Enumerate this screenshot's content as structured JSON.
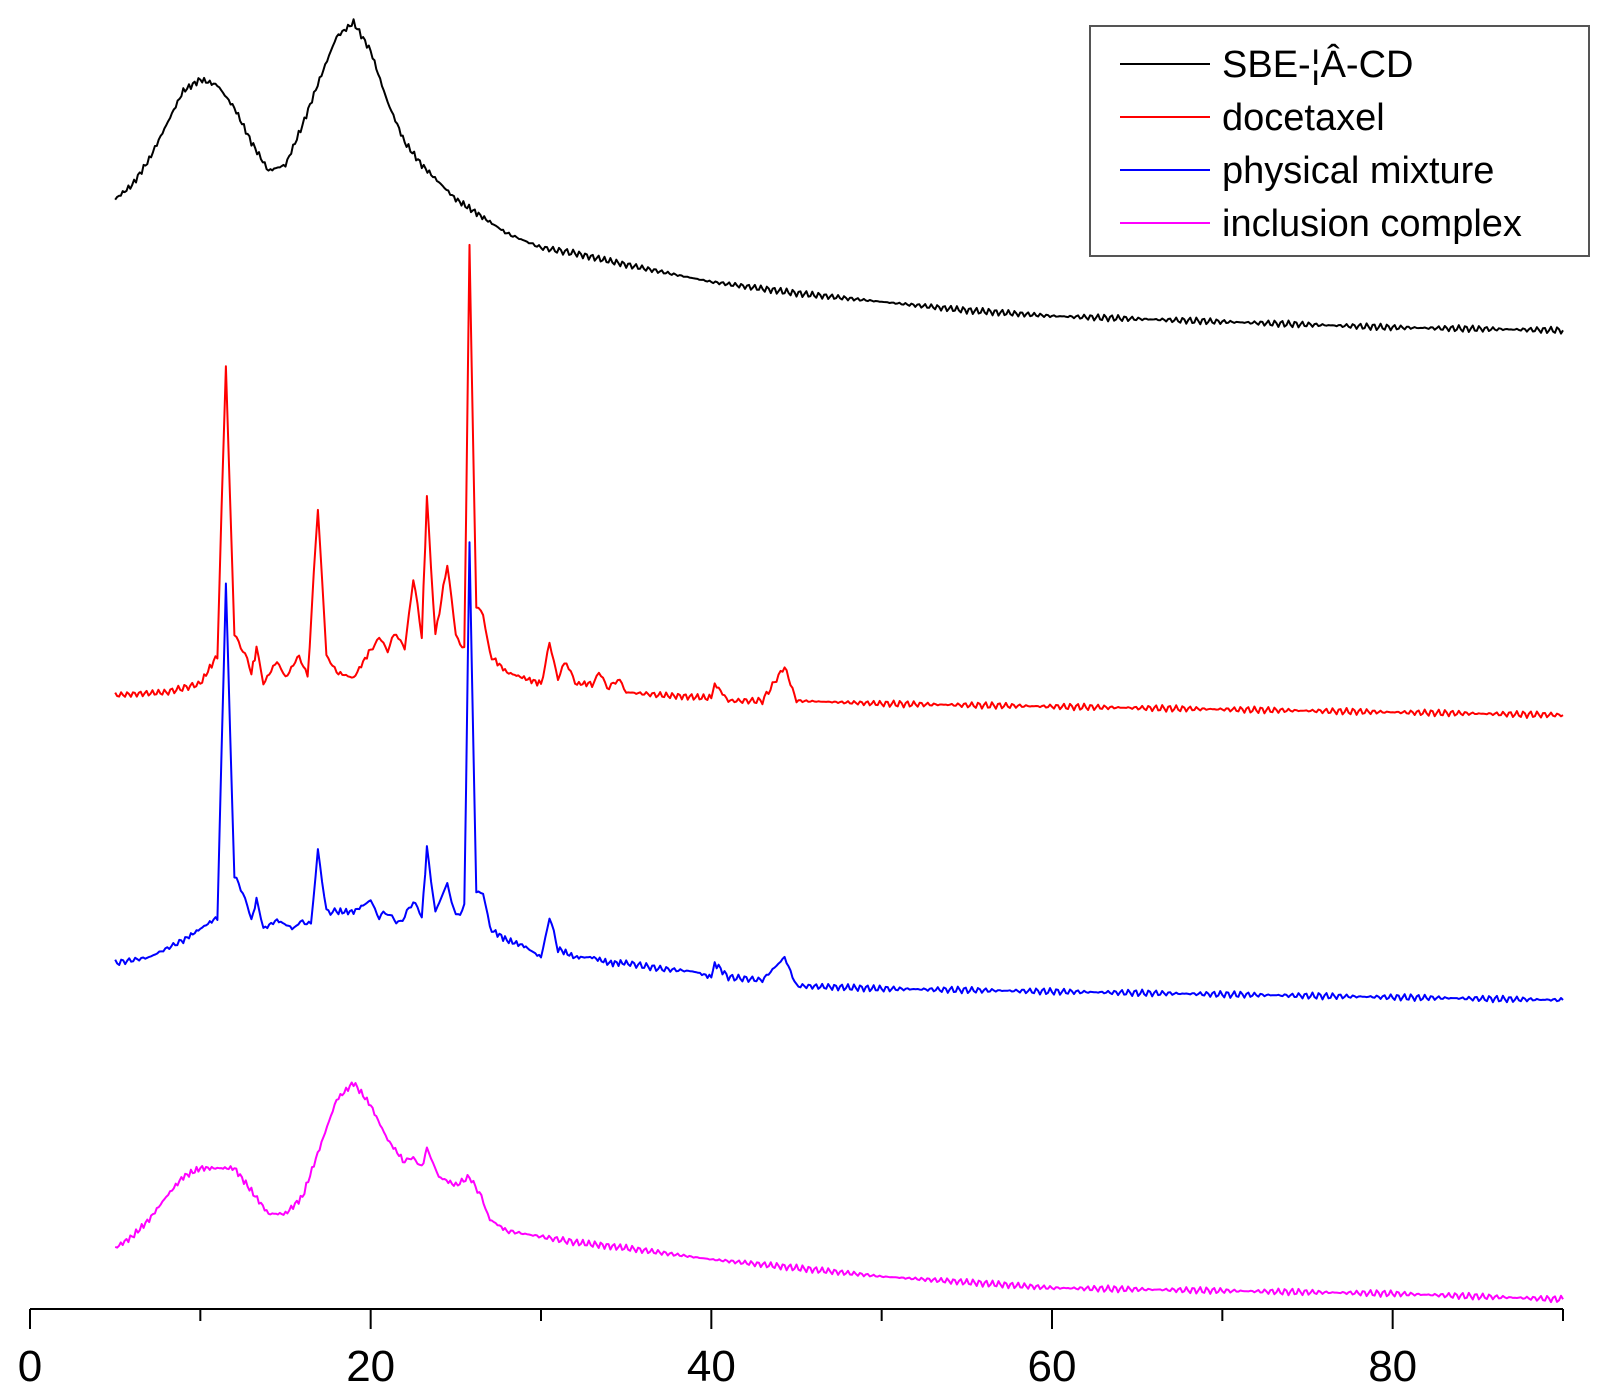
{
  "chart_data": {
    "type": "line",
    "title": "",
    "xlabel": "",
    "ylabel": "",
    "xlim": [
      0,
      90
    ],
    "x_ticks": [
      0,
      20,
      40,
      60,
      80
    ],
    "x_minor_ticks": [
      10,
      30,
      50,
      70,
      90
    ],
    "y_axis_shown": false,
    "grid": false,
    "legend_position": "top-right",
    "legend": [
      "SBE-¦Â-CD",
      "docetaxel",
      "physical mixture",
      "inclusion complex"
    ],
    "series": [
      {
        "name": "SBE-¦Â-CD",
        "color": "#000000",
        "baseline_offset": 3.0,
        "points": [
          [
            5,
            0.88
          ],
          [
            6,
            0.93
          ],
          [
            7,
            1.02
          ],
          [
            8,
            1.14
          ],
          [
            9,
            1.26
          ],
          [
            10,
            1.3
          ],
          [
            11,
            1.28
          ],
          [
            12,
            1.2
          ],
          [
            13,
            1.08
          ],
          [
            14,
            0.98
          ],
          [
            15,
            1.0
          ],
          [
            16,
            1.14
          ],
          [
            17,
            1.3
          ],
          [
            18,
            1.45
          ],
          [
            19,
            1.5
          ],
          [
            20,
            1.4
          ],
          [
            21,
            1.22
          ],
          [
            22,
            1.08
          ],
          [
            23,
            1.0
          ],
          [
            24,
            0.94
          ],
          [
            25,
            0.88
          ],
          [
            26,
            0.84
          ],
          [
            27,
            0.8
          ],
          [
            28,
            0.76
          ],
          [
            30,
            0.71
          ],
          [
            32,
            0.69
          ],
          [
            35,
            0.65
          ],
          [
            40,
            0.59
          ],
          [
            45,
            0.55
          ],
          [
            50,
            0.52
          ],
          [
            55,
            0.49
          ],
          [
            60,
            0.47
          ],
          [
            70,
            0.45
          ],
          [
            80,
            0.43
          ],
          [
            90,
            0.42
          ]
        ]
      },
      {
        "name": "docetaxel",
        "color": "#ff0000",
        "baseline_offset": 2.0,
        "points": [
          [
            5,
            0.14
          ],
          [
            8,
            0.15
          ],
          [
            10,
            0.18
          ],
          [
            11,
            0.28
          ],
          [
            11.5,
            1.3
          ],
          [
            12,
            0.35
          ],
          [
            12.5,
            0.3
          ],
          [
            13,
            0.22
          ],
          [
            13.3,
            0.3
          ],
          [
            13.7,
            0.18
          ],
          [
            14.5,
            0.26
          ],
          [
            15,
            0.2
          ],
          [
            15.8,
            0.28
          ],
          [
            16.3,
            0.2
          ],
          [
            16.9,
            0.8
          ],
          [
            17.4,
            0.28
          ],
          [
            18,
            0.22
          ],
          [
            19,
            0.2
          ],
          [
            20,
            0.3
          ],
          [
            20.5,
            0.34
          ],
          [
            21,
            0.3
          ],
          [
            21.5,
            0.36
          ],
          [
            22,
            0.3
          ],
          [
            22.5,
            0.55
          ],
          [
            23,
            0.35
          ],
          [
            23.3,
            0.83
          ],
          [
            23.8,
            0.35
          ],
          [
            24.5,
            0.6
          ],
          [
            25,
            0.35
          ],
          [
            25.5,
            0.3
          ],
          [
            25.8,
            1.72
          ],
          [
            26.2,
            0.45
          ],
          [
            26.6,
            0.42
          ],
          [
            27,
            0.28
          ],
          [
            28,
            0.22
          ],
          [
            29,
            0.2
          ],
          [
            30,
            0.18
          ],
          [
            30.5,
            0.32
          ],
          [
            31,
            0.2
          ],
          [
            31.5,
            0.26
          ],
          [
            32,
            0.18
          ],
          [
            33,
            0.18
          ],
          [
            33.4,
            0.22
          ],
          [
            34,
            0.16
          ],
          [
            34.5,
            0.2
          ],
          [
            35,
            0.15
          ],
          [
            37,
            0.14
          ],
          [
            40,
            0.13
          ],
          [
            40.2,
            0.18
          ],
          [
            41,
            0.12
          ],
          [
            43,
            0.12
          ],
          [
            44.3,
            0.24
          ],
          [
            45,
            0.12
          ],
          [
            50,
            0.11
          ],
          [
            60,
            0.1
          ],
          [
            70,
            0.09
          ],
          [
            80,
            0.08
          ],
          [
            90,
            0.07
          ]
        ]
      },
      {
        "name": "physical mixture",
        "color": "#0000ff",
        "baseline_offset": 1.0,
        "points": [
          [
            5,
            0.2
          ],
          [
            7,
            0.22
          ],
          [
            9,
            0.28
          ],
          [
            10,
            0.32
          ],
          [
            11,
            0.36
          ],
          [
            11.5,
            1.53
          ],
          [
            12,
            0.5
          ],
          [
            12.5,
            0.45
          ],
          [
            13,
            0.35
          ],
          [
            13.3,
            0.42
          ],
          [
            13.7,
            0.32
          ],
          [
            14.5,
            0.35
          ],
          [
            15.5,
            0.32
          ],
          [
            16,
            0.35
          ],
          [
            16.5,
            0.33
          ],
          [
            16.9,
            0.6
          ],
          [
            17.4,
            0.38
          ],
          [
            18,
            0.38
          ],
          [
            19,
            0.38
          ],
          [
            20,
            0.42
          ],
          [
            20.5,
            0.36
          ],
          [
            21,
            0.38
          ],
          [
            21.5,
            0.34
          ],
          [
            22,
            0.36
          ],
          [
            22.5,
            0.42
          ],
          [
            23,
            0.36
          ],
          [
            23.3,
            0.6
          ],
          [
            23.8,
            0.38
          ],
          [
            24.5,
            0.48
          ],
          [
            25,
            0.36
          ],
          [
            25.5,
            0.4
          ],
          [
            25.8,
            1.68
          ],
          [
            26.2,
            0.45
          ],
          [
            26.6,
            0.45
          ],
          [
            27,
            0.32
          ],
          [
            28,
            0.28
          ],
          [
            29,
            0.26
          ],
          [
            30,
            0.22
          ],
          [
            30.5,
            0.36
          ],
          [
            31,
            0.25
          ],
          [
            32,
            0.22
          ],
          [
            33,
            0.22
          ],
          [
            34,
            0.2
          ],
          [
            35,
            0.2
          ],
          [
            37,
            0.18
          ],
          [
            39,
            0.17
          ],
          [
            40,
            0.15
          ],
          [
            40.2,
            0.2
          ],
          [
            41,
            0.15
          ],
          [
            43,
            0.14
          ],
          [
            44.3,
            0.22
          ],
          [
            45,
            0.12
          ],
          [
            50,
            0.11
          ],
          [
            60,
            0.1
          ],
          [
            70,
            0.09
          ],
          [
            80,
            0.08
          ],
          [
            90,
            0.07
          ]
        ]
      },
      {
        "name": "inclusion complex",
        "color": "#ff00ff",
        "baseline_offset": 0.0,
        "points": [
          [
            5,
            0.2
          ],
          [
            6,
            0.24
          ],
          [
            7,
            0.3
          ],
          [
            8,
            0.38
          ],
          [
            9,
            0.45
          ],
          [
            10,
            0.48
          ],
          [
            11,
            0.48
          ],
          [
            12,
            0.48
          ],
          [
            13,
            0.4
          ],
          [
            14,
            0.32
          ],
          [
            15,
            0.32
          ],
          [
            16,
            0.38
          ],
          [
            17,
            0.55
          ],
          [
            18,
            0.72
          ],
          [
            19,
            0.78
          ],
          [
            20,
            0.7
          ],
          [
            21,
            0.58
          ],
          [
            22,
            0.5
          ],
          [
            22.5,
            0.52
          ],
          [
            23,
            0.48
          ],
          [
            23.3,
            0.55
          ],
          [
            24,
            0.45
          ],
          [
            25,
            0.42
          ],
          [
            25.8,
            0.45
          ],
          [
            26.5,
            0.38
          ],
          [
            27,
            0.3
          ],
          [
            28,
            0.26
          ],
          [
            30,
            0.24
          ],
          [
            32,
            0.22
          ],
          [
            35,
            0.2
          ],
          [
            40,
            0.16
          ],
          [
            45,
            0.13
          ],
          [
            50,
            0.1
          ],
          [
            55,
            0.08
          ],
          [
            60,
            0.06
          ],
          [
            70,
            0.05
          ],
          [
            80,
            0.04
          ],
          [
            90,
            0.02
          ]
        ]
      }
    ]
  }
}
